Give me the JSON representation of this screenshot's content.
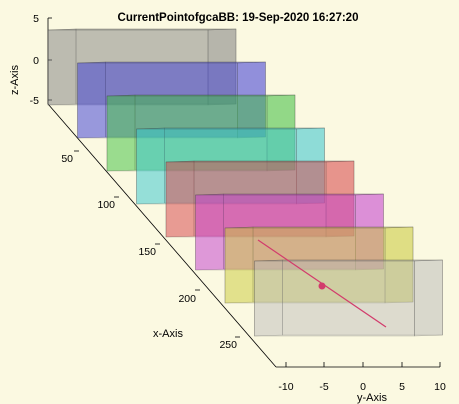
{
  "chart_data": {
    "type": "3d-boxes",
    "title": "CurrentPointofgcaBB: 19-Sep-2020 16:27:20",
    "xlabel": "x-Axis",
    "ylabel": "y-Axis",
    "zlabel": "z-Axis",
    "x_ticks": [
      "50",
      "100",
      "150",
      "200",
      "250"
    ],
    "y_ticks": [
      "-10",
      "-5",
      "0",
      "5",
      "10"
    ],
    "z_ticks": [
      "5",
      "0",
      "-5"
    ],
    "grid": true,
    "boxes": [
      {
        "color": "#808080",
        "opacity": 0.55
      },
      {
        "color": "#3b3bd6",
        "opacity": 0.55
      },
      {
        "color": "#3fbf3f",
        "opacity": 0.55
      },
      {
        "color": "#36c6cf",
        "opacity": 0.55
      },
      {
        "color": "#d8434a",
        "opacity": 0.55
      },
      {
        "color": "#c43bd0",
        "opacity": 0.55
      },
      {
        "color": "#c9c93a",
        "opacity": 0.55
      },
      {
        "color": "#b9b9b9",
        "opacity": 0.5
      }
    ],
    "current_point": {
      "color": "#d23c6c"
    }
  }
}
